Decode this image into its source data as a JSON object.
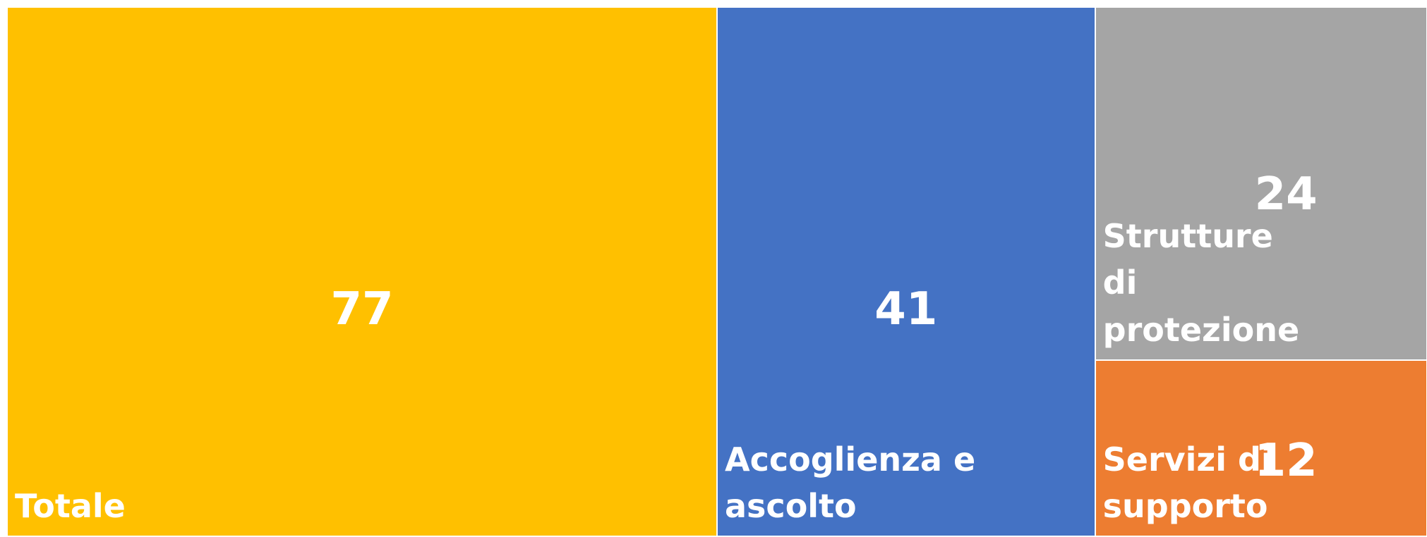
{
  "chart_data": {
    "type": "treemap",
    "categories": [
      "Totale",
      "Accoglienza e ascolto",
      "Strutture di protezione",
      "Servizi di supporto"
    ],
    "values": [
      77,
      41,
      24,
      12
    ],
    "colors": [
      "#ffc000",
      "#4472c4",
      "#a5a5a5",
      "#ed7d31"
    ]
  }
}
